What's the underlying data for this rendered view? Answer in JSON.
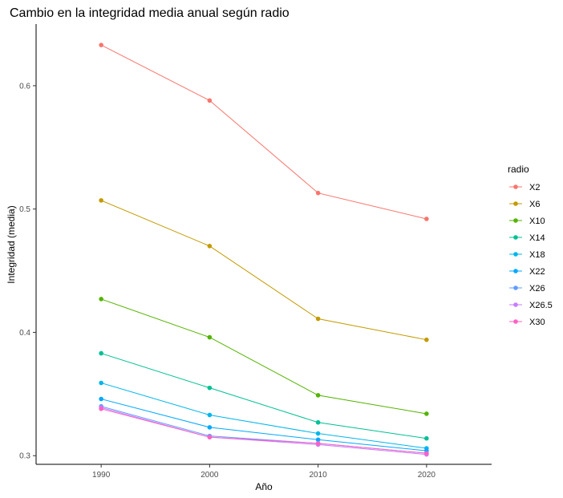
{
  "chart_data": {
    "type": "line",
    "title": "Cambio en la integridad media anual según radio",
    "xlabel": "Año",
    "ylabel": "Integridad (media)",
    "x": [
      1990,
      2000,
      2010,
      2020
    ],
    "xlim": [
      1984,
      2026
    ],
    "ylim": [
      0.293,
      0.65
    ],
    "yticks": [
      0.3,
      0.4,
      0.5,
      0.6
    ],
    "ytick_labels": [
      "0.3",
      "0.4",
      "0.5",
      "0.6"
    ],
    "xtick_labels": [
      "1990",
      "2000",
      "2010",
      "2020"
    ],
    "grid": false,
    "legend": {
      "title": "radio",
      "position": "right"
    },
    "series": [
      {
        "name": "X2",
        "color": "#F8766D",
        "values": [
          0.633,
          0.588,
          0.513,
          0.492
        ]
      },
      {
        "name": "X6",
        "color": "#C49A00",
        "values": [
          0.507,
          0.47,
          0.411,
          0.394
        ]
      },
      {
        "name": "X10",
        "color": "#53B400",
        "values": [
          0.427,
          0.396,
          0.349,
          0.334
        ]
      },
      {
        "name": "X14",
        "color": "#00C094",
        "values": [
          0.383,
          0.355,
          0.327,
          0.314
        ]
      },
      {
        "name": "X18",
        "color": "#00B6EB",
        "values": [
          0.359,
          0.333,
          0.318,
          0.306
        ]
      },
      {
        "name": "X22",
        "color": "#00A9FF",
        "values": [
          0.346,
          0.323,
          0.313,
          0.304
        ]
      },
      {
        "name": "X26",
        "color": "#619CFF",
        "values": [
          0.34,
          0.316,
          0.31,
          0.302
        ]
      },
      {
        "name": "X26.5",
        "color": "#C77CFF",
        "values": [
          0.339,
          0.315,
          0.309,
          0.301
        ]
      },
      {
        "name": "X30",
        "color": "#FF61C3",
        "values": [
          0.338,
          0.315,
          0.31,
          0.302
        ]
      }
    ]
  }
}
